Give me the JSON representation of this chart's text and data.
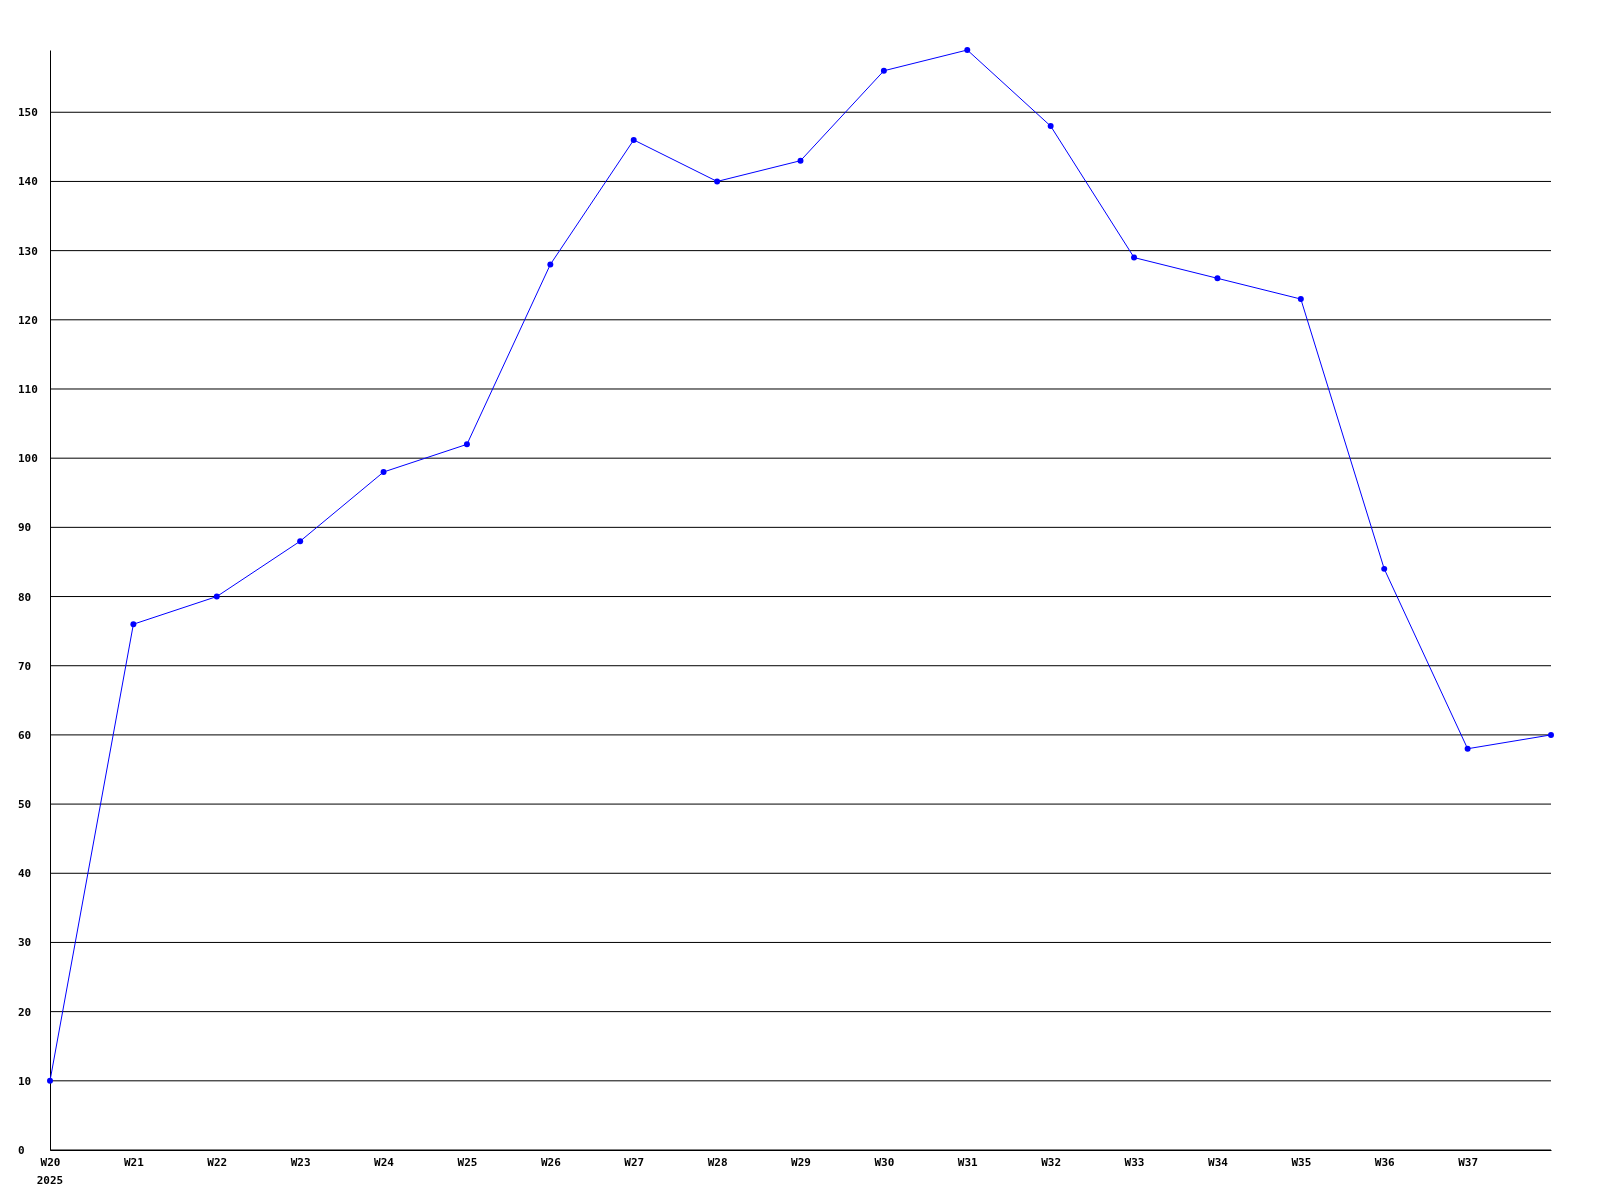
{
  "chart_data": {
    "type": "line",
    "categories": [
      "W20",
      "W21",
      "W22",
      "W23",
      "W24",
      "W25",
      "W26",
      "W27",
      "W28",
      "W29",
      "W30",
      "W31",
      "W32",
      "W33",
      "W34",
      "W35",
      "W36",
      "W37",
      null
    ],
    "series": [
      {
        "color": "#0000ff",
        "values": [
          10,
          76,
          80,
          88,
          98,
          102,
          128,
          146,
          140,
          143,
          156,
          159,
          148,
          129,
          126,
          123,
          84,
          58,
          60
        ]
      }
    ],
    "ylim": [
      0,
      159
    ],
    "yticks": [
      0,
      10,
      20,
      30,
      40,
      50,
      60,
      70,
      80,
      90,
      100,
      110,
      120,
      130,
      140,
      150
    ],
    "grid": "y",
    "marker": "circle",
    "line_style": "solid",
    "annotations": [
      "2025"
    ]
  }
}
